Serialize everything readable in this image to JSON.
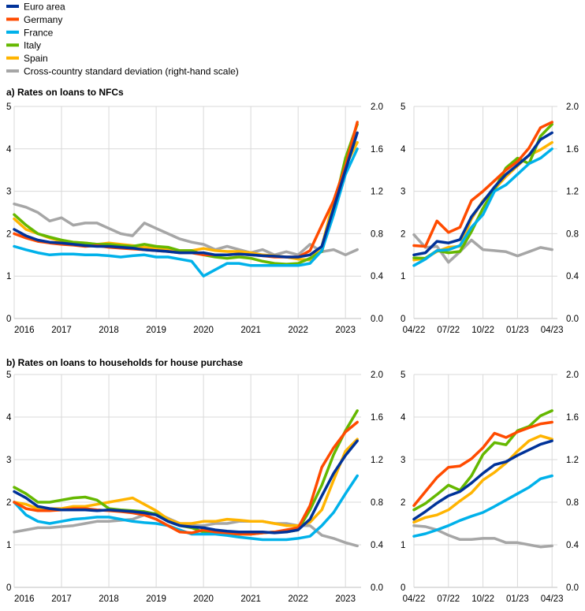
{
  "legend": [
    {
      "name": "Euro area",
      "color": "#003299"
    },
    {
      "name": "Germany",
      "color": "#FF4B00"
    },
    {
      "name": "France",
      "color": "#00B1EA"
    },
    {
      "name": "Italy",
      "color": "#65B800"
    },
    {
      "name": "Spain",
      "color": "#FFB400"
    },
    {
      "name": "Cross-country standard deviation (right-hand scale)",
      "color": "#A6A6A6"
    }
  ],
  "chart_data": [
    {
      "type": "line",
      "panel": "a-long",
      "title": "a) Rates on loans to NFCs",
      "x_start": 2016.0,
      "x_step_years": 0.25,
      "xticks": [
        "2016",
        "2017",
        "2018",
        "2019",
        "2020",
        "2021",
        "2022",
        "2023"
      ],
      "ylim": [
        0,
        5
      ],
      "yticks": [
        "0",
        "1",
        "2",
        "3",
        "4",
        "5"
      ],
      "y2lim": [
        0,
        2
      ],
      "y2ticks": [
        "0.0",
        "0.4",
        "0.8",
        "1.2",
        "1.6",
        "2.0"
      ],
      "grid": true,
      "series": [
        {
          "name": "Euro area",
          "axis": "left",
          "values": [
            2.1,
            1.95,
            1.85,
            1.8,
            1.78,
            1.75,
            1.72,
            1.7,
            1.7,
            1.68,
            1.66,
            1.62,
            1.6,
            1.58,
            1.55,
            1.55,
            1.55,
            1.5,
            1.5,
            1.52,
            1.5,
            1.48,
            1.47,
            1.45,
            1.45,
            1.5,
            1.7,
            2.6,
            3.5,
            4.38
          ]
        },
        {
          "name": "Germany",
          "axis": "left",
          "values": [
            2.0,
            1.9,
            1.82,
            1.78,
            1.75,
            1.73,
            1.7,
            1.72,
            1.68,
            1.66,
            1.64,
            1.62,
            1.6,
            1.58,
            1.55,
            1.55,
            1.5,
            1.5,
            1.5,
            1.52,
            1.5,
            1.48,
            1.45,
            1.45,
            1.45,
            1.6,
            2.2,
            2.78,
            3.6,
            4.63
          ]
        },
        {
          "name": "France",
          "axis": "left",
          "values": [
            1.7,
            1.62,
            1.55,
            1.5,
            1.52,
            1.52,
            1.5,
            1.5,
            1.48,
            1.45,
            1.48,
            1.5,
            1.45,
            1.45,
            1.4,
            1.35,
            1.0,
            1.15,
            1.3,
            1.3,
            1.25,
            1.25,
            1.25,
            1.25,
            1.25,
            1.3,
            1.6,
            2.45,
            3.4,
            4.0
          ]
        },
        {
          "name": "Italy",
          "axis": "left",
          "values": [
            2.45,
            2.2,
            2.0,
            1.92,
            1.85,
            1.8,
            1.78,
            1.75,
            1.75,
            1.72,
            1.7,
            1.75,
            1.7,
            1.68,
            1.6,
            1.6,
            1.5,
            1.45,
            1.42,
            1.45,
            1.42,
            1.35,
            1.3,
            1.28,
            1.3,
            1.42,
            1.58,
            2.6,
            3.78,
            4.58
          ]
        },
        {
          "name": "Spain",
          "axis": "left",
          "values": [
            2.35,
            2.1,
            2.0,
            1.9,
            1.82,
            1.8,
            1.78,
            1.75,
            1.78,
            1.75,
            1.72,
            1.68,
            1.65,
            1.62,
            1.6,
            1.6,
            1.65,
            1.6,
            1.58,
            1.58,
            1.55,
            1.5,
            1.48,
            1.45,
            1.4,
            1.38,
            1.7,
            2.78,
            3.6,
            4.15
          ]
        },
        {
          "name": "Cross-country standard deviation (right-hand scale)",
          "axis": "right",
          "values": [
            1.08,
            1.05,
            1.0,
            0.92,
            0.95,
            0.88,
            0.9,
            0.9,
            0.85,
            0.8,
            0.78,
            0.9,
            0.85,
            0.8,
            0.75,
            0.72,
            0.7,
            0.65,
            0.68,
            0.65,
            0.62,
            0.65,
            0.6,
            0.63,
            0.6,
            0.7,
            0.63,
            0.65,
            0.6,
            0.65
          ]
        }
      ]
    },
    {
      "type": "line",
      "panel": "a-recent",
      "x_start_month": "04/22",
      "x_step": "1 month",
      "xticks": [
        "04/22",
        "07/22",
        "10/22",
        "01/23",
        "04/23"
      ],
      "ylim": [
        0,
        5
      ],
      "yticks": [
        "0",
        "1",
        "2",
        "3",
        "4",
        "5"
      ],
      "y2lim": [
        0,
        2
      ],
      "y2ticks": [
        "0.0",
        "0.4",
        "0.8",
        "1.2",
        "1.6",
        "2.0"
      ],
      "grid": true,
      "series": [
        {
          "name": "Euro area",
          "axis": "left",
          "values": [
            1.5,
            1.55,
            1.82,
            1.78,
            1.86,
            2.4,
            2.75,
            3.1,
            3.4,
            3.62,
            3.85,
            4.22,
            4.38
          ]
        },
        {
          "name": "Germany",
          "axis": "left",
          "values": [
            1.72,
            1.7,
            2.3,
            2.03,
            2.15,
            2.78,
            3.0,
            3.25,
            3.5,
            3.7,
            4.02,
            4.5,
            4.63
          ]
        },
        {
          "name": "France",
          "axis": "left",
          "values": [
            1.25,
            1.4,
            1.6,
            1.62,
            1.72,
            2.15,
            2.45,
            3.0,
            3.15,
            3.4,
            3.65,
            3.78,
            4.0
          ]
        },
        {
          "name": "Italy",
          "axis": "left",
          "values": [
            1.43,
            1.42,
            1.6,
            1.55,
            1.58,
            2.05,
            2.6,
            3.05,
            3.55,
            3.78,
            3.65,
            4.3,
            4.58
          ]
        },
        {
          "name": "Spain",
          "axis": "left",
          "values": [
            1.38,
            1.42,
            1.58,
            1.68,
            1.7,
            2.35,
            2.78,
            3.05,
            3.35,
            3.6,
            3.85,
            3.98,
            4.15
          ]
        },
        {
          "name": "Cross-country standard deviation (right-hand scale)",
          "axis": "right",
          "values": [
            0.79,
            0.67,
            0.68,
            0.53,
            0.63,
            0.74,
            0.65,
            0.64,
            0.63,
            0.59,
            0.63,
            0.67,
            0.65
          ]
        }
      ]
    },
    {
      "type": "line",
      "panel": "b-long",
      "title": "b) Rates on loans to households for house purchase",
      "x_start": 2016.0,
      "x_step_years": 0.25,
      "xticks": [
        "2016",
        "2017",
        "2018",
        "2019",
        "2020",
        "2021",
        "2022",
        "2023"
      ],
      "ylim": [
        0,
        5
      ],
      "yticks": [
        "0",
        "1",
        "2",
        "3",
        "4",
        "5"
      ],
      "y2lim": [
        0,
        2
      ],
      "y2ticks": [
        "0.0",
        "0.4",
        "0.8",
        "1.2",
        "1.6",
        "2.0"
      ],
      "grid": true,
      "series": [
        {
          "name": "Euro area",
          "axis": "left",
          "values": [
            2.25,
            2.1,
            1.9,
            1.85,
            1.82,
            1.82,
            1.82,
            1.8,
            1.82,
            1.8,
            1.78,
            1.75,
            1.7,
            1.55,
            1.45,
            1.42,
            1.4,
            1.35,
            1.32,
            1.3,
            1.3,
            1.3,
            1.28,
            1.3,
            1.35,
            1.6,
            2.15,
            2.68,
            3.1,
            3.44
          ]
        },
        {
          "name": "Germany",
          "axis": "left",
          "values": [
            2.0,
            1.85,
            1.8,
            1.8,
            1.82,
            1.85,
            1.85,
            1.82,
            1.8,
            1.78,
            1.75,
            1.7,
            1.6,
            1.45,
            1.3,
            1.28,
            1.35,
            1.3,
            1.28,
            1.25,
            1.25,
            1.28,
            1.3,
            1.35,
            1.4,
            1.92,
            2.82,
            3.28,
            3.65,
            3.88
          ]
        },
        {
          "name": "France",
          "axis": "left",
          "values": [
            2.0,
            1.7,
            1.55,
            1.5,
            1.55,
            1.6,
            1.62,
            1.65,
            1.65,
            1.6,
            1.55,
            1.52,
            1.5,
            1.45,
            1.35,
            1.25,
            1.25,
            1.25,
            1.22,
            1.18,
            1.15,
            1.12,
            1.12,
            1.12,
            1.15,
            1.2,
            1.45,
            1.76,
            2.2,
            2.62
          ]
        },
        {
          "name": "Italy",
          "axis": "left",
          "values": [
            2.35,
            2.2,
            2.0,
            2.0,
            2.05,
            2.1,
            2.12,
            2.05,
            1.85,
            1.82,
            1.8,
            1.78,
            1.72,
            1.55,
            1.45,
            1.4,
            1.3,
            1.28,
            1.25,
            1.25,
            1.25,
            1.28,
            1.3,
            1.3,
            1.35,
            1.82,
            2.4,
            3.12,
            3.68,
            4.15
          ]
        },
        {
          "name": "Spain",
          "axis": "left",
          "values": [
            2.0,
            1.95,
            1.85,
            1.85,
            1.85,
            1.9,
            1.9,
            1.95,
            2.0,
            2.05,
            2.1,
            1.95,
            1.8,
            1.6,
            1.5,
            1.5,
            1.55,
            1.55,
            1.6,
            1.58,
            1.55,
            1.55,
            1.5,
            1.45,
            1.45,
            1.53,
            1.82,
            2.52,
            3.2,
            3.48
          ]
        },
        {
          "name": "Cross-country standard deviation (right-hand scale)",
          "axis": "right",
          "values": [
            0.52,
            0.54,
            0.56,
            0.56,
            0.57,
            0.58,
            0.6,
            0.62,
            0.62,
            0.63,
            0.64,
            0.68,
            0.7,
            0.65,
            0.6,
            0.58,
            0.58,
            0.6,
            0.6,
            0.62,
            0.62,
            0.62,
            0.6,
            0.6,
            0.58,
            0.58,
            0.49,
            0.46,
            0.42,
            0.39
          ]
        }
      ]
    },
    {
      "type": "line",
      "panel": "b-recent",
      "x_start_month": "04/22",
      "x_step": "1 month",
      "xticks": [
        "04/22",
        "07/22",
        "10/22",
        "01/23",
        "04/23"
      ],
      "ylim": [
        0,
        5
      ],
      "yticks": [
        "0",
        "1",
        "2",
        "3",
        "4",
        "5"
      ],
      "y2lim": [
        0,
        2
      ],
      "y2ticks": [
        "0.0",
        "0.4",
        "0.8",
        "1.2",
        "1.6",
        "2.0"
      ],
      "grid": true,
      "series": [
        {
          "name": "Euro area",
          "axis": "left",
          "values": [
            1.6,
            1.78,
            1.98,
            2.15,
            2.25,
            2.45,
            2.68,
            2.88,
            2.95,
            3.1,
            3.23,
            3.36,
            3.44
          ]
        },
        {
          "name": "Germany",
          "axis": "left",
          "values": [
            1.92,
            2.25,
            2.58,
            2.82,
            2.85,
            3.02,
            3.28,
            3.62,
            3.52,
            3.65,
            3.75,
            3.84,
            3.88
          ]
        },
        {
          "name": "France",
          "axis": "left",
          "values": [
            1.2,
            1.26,
            1.35,
            1.45,
            1.57,
            1.67,
            1.76,
            1.9,
            2.05,
            2.2,
            2.35,
            2.55,
            2.62
          ]
        },
        {
          "name": "Italy",
          "axis": "left",
          "values": [
            1.82,
            1.97,
            2.18,
            2.4,
            2.28,
            2.62,
            3.12,
            3.4,
            3.35,
            3.68,
            3.78,
            4.03,
            4.15
          ]
        },
        {
          "name": "Spain",
          "axis": "left",
          "values": [
            1.53,
            1.64,
            1.7,
            1.82,
            2.03,
            2.22,
            2.52,
            2.7,
            2.92,
            3.2,
            3.44,
            3.56,
            3.48
          ]
        },
        {
          "name": "Cross-country standard deviation (right-hand scale)",
          "axis": "right",
          "values": [
            0.58,
            0.57,
            0.54,
            0.49,
            0.45,
            0.45,
            0.46,
            0.46,
            0.42,
            0.42,
            0.4,
            0.38,
            0.39
          ]
        }
      ]
    }
  ]
}
